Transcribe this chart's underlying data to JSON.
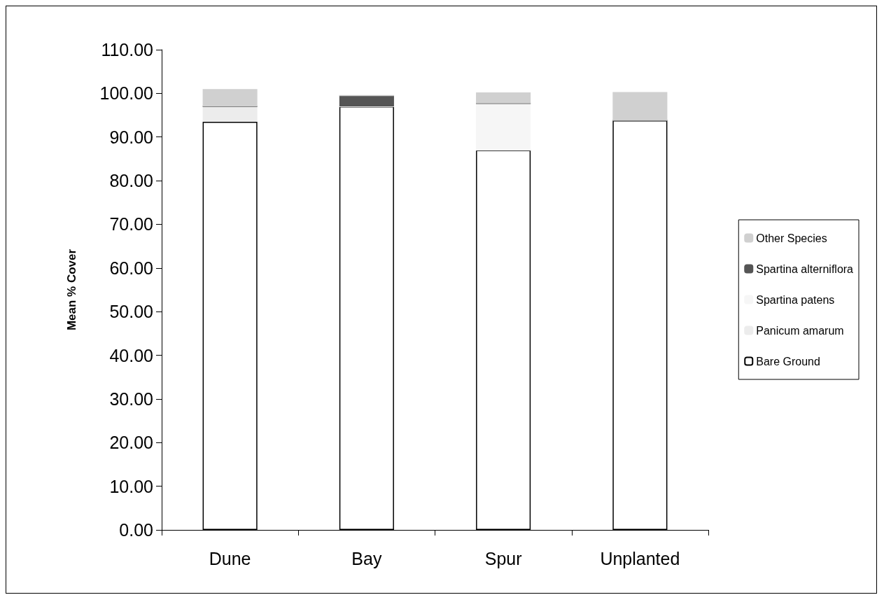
{
  "chart_data": {
    "type": "bar",
    "stacked": true,
    "ylabel": "Mean % Cover",
    "categories": [
      "Dune",
      "Bay",
      "Spur",
      "Unplanted"
    ],
    "series": [
      {
        "name": "Bare Ground",
        "color": "#ffffff",
        "values": [
          93.5,
          97.0,
          87.0,
          93.8
        ]
      },
      {
        "name": "Panicum amarum",
        "color": "#ececec",
        "values": [
          3.5,
          0,
          0,
          0
        ]
      },
      {
        "name": "Spartina patens",
        "color": "#f6f6f6",
        "values": [
          0,
          0,
          10.7,
          0
        ]
      },
      {
        "name": "Spartina alterniflora",
        "color": "#555555",
        "values": [
          0,
          2.5,
          0,
          0
        ]
      },
      {
        "name": "Other Species",
        "color": "#d0d0d0",
        "values": [
          4.0,
          0,
          2.5,
          6.5
        ]
      }
    ],
    "ylim": [
      0,
      110
    ],
    "yticks": [
      {
        "value": 0,
        "label": "0.00"
      },
      {
        "value": 10,
        "label": "10.00"
      },
      {
        "value": 20,
        "label": "20.00"
      },
      {
        "value": 30,
        "label": "30.00"
      },
      {
        "value": 40,
        "label": "40.00"
      },
      {
        "value": 50,
        "label": "50.00"
      },
      {
        "value": 60,
        "label": "60.00"
      },
      {
        "value": 70,
        "label": "70.00"
      },
      {
        "value": 80,
        "label": "80.00"
      },
      {
        "value": 90,
        "label": "90.00"
      },
      {
        "value": 100,
        "label": "100.00"
      },
      {
        "value": 110,
        "label": "110.00"
      }
    ],
    "grid": false,
    "legend": "right"
  }
}
